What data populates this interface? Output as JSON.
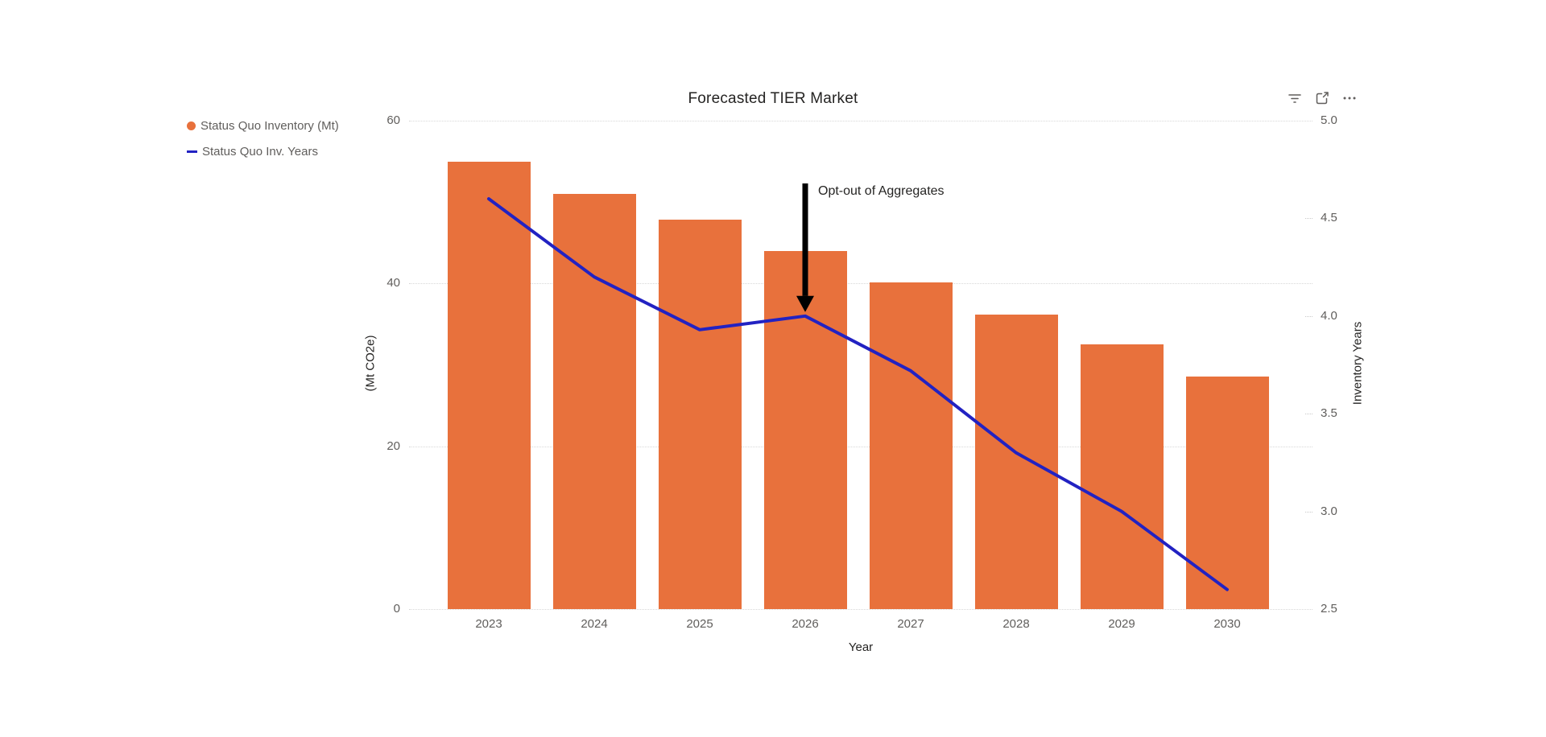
{
  "header": {
    "icons": [
      {
        "name": "filter-icon"
      },
      {
        "name": "open-in-new-window-icon"
      },
      {
        "name": "more-options-icon"
      }
    ]
  },
  "chart_data": {
    "type": "bar",
    "subtype": "column-line-combo",
    "title": "Forecasted TIER Market",
    "categories": [
      "2023",
      "2024",
      "2025",
      "2026",
      "2027",
      "2028",
      "2029",
      "2030"
    ],
    "series": [
      {
        "name": "Status Quo Inventory (Mt)",
        "type": "bar",
        "axis": "left",
        "color": "#E8713C",
        "values": [
          55,
          51,
          47.8,
          44,
          40.1,
          36.2,
          32.5,
          28.6
        ]
      },
      {
        "name": "Status Quo Inv. Years",
        "type": "line",
        "axis": "right",
        "color": "#2222C2",
        "values": [
          4.6,
          4.2,
          3.93,
          4.0,
          3.72,
          3.3,
          3.0,
          2.6
        ]
      }
    ],
    "xlabel": "Year",
    "left_axis": {
      "label": "(Mt CO2e)",
      "range": [
        0,
        60
      ],
      "ticks": [
        0,
        20,
        40,
        60
      ],
      "tick_labels": [
        "0",
        "20",
        "40",
        "60"
      ]
    },
    "right_axis": {
      "label": "Inventory Years",
      "range": [
        2.5,
        5.0
      ],
      "ticks": [
        2.5,
        3.0,
        3.5,
        4.0,
        4.5,
        5.0
      ],
      "tick_labels": [
        "2.5",
        "3.0",
        "3.5",
        "4.0",
        "4.5",
        "5.0"
      ]
    },
    "legend_position": "top-left",
    "grid": "horizontal-dotted",
    "annotation": {
      "text": "Opt-out of Aggregates",
      "category": "2026",
      "arrow": "vertical-down",
      "arrow_color": "#000000"
    }
  },
  "colors": {
    "bar": "#E8713C",
    "line": "#2222C2",
    "gridline": "#D8D8D8",
    "tick_text": "#605E5C",
    "dark_text": "#252423",
    "icon": "#605E5C"
  }
}
